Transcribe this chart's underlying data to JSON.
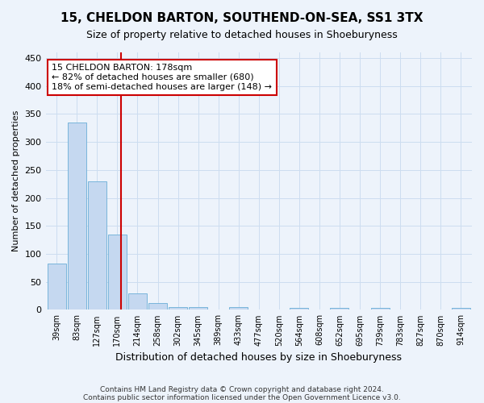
{
  "title": "15, CHELDON BARTON, SOUTHEND-ON-SEA, SS1 3TX",
  "subtitle": "Size of property relative to detached houses in Shoeburyness",
  "xlabel": "Distribution of detached houses by size in Shoeburyness",
  "ylabel": "Number of detached properties",
  "footnote1": "Contains HM Land Registry data © Crown copyright and database right 2024.",
  "footnote2": "Contains public sector information licensed under the Open Government Licence v3.0.",
  "categories": [
    "39sqm",
    "83sqm",
    "127sqm",
    "170sqm",
    "214sqm",
    "258sqm",
    "302sqm",
    "345sqm",
    "389sqm",
    "433sqm",
    "477sqm",
    "520sqm",
    "564sqm",
    "608sqm",
    "652sqm",
    "695sqm",
    "739sqm",
    "783sqm",
    "827sqm",
    "870sqm",
    "914sqm"
  ],
  "values": [
    83,
    335,
    230,
    135,
    30,
    12,
    5,
    5,
    0,
    5,
    0,
    0,
    3,
    0,
    4,
    0,
    3,
    0,
    0,
    0,
    4
  ],
  "bar_color": "#c5d8f0",
  "bar_edge_color": "#6aaed6",
  "annotation_text_line1": "15 CHELDON BARTON: 178sqm",
  "annotation_text_line2": "← 82% of detached houses are smaller (680)",
  "annotation_text_line3": "18% of semi-detached houses are larger (148) →",
  "annotation_box_color": "#ffffff",
  "annotation_box_edge_color": "#cc0000",
  "vline_color": "#cc0000",
  "grid_color": "#ccddf0",
  "bg_color": "#edf3fb",
  "ylim": [
    0,
    460
  ],
  "yticks": [
    0,
    50,
    100,
    150,
    200,
    250,
    300,
    350,
    400,
    450
  ],
  "title_fontsize": 11,
  "subtitle_fontsize": 9,
  "xlabel_fontsize": 9,
  "ylabel_fontsize": 8,
  "tick_fontsize": 8,
  "xtick_fontsize": 7
}
